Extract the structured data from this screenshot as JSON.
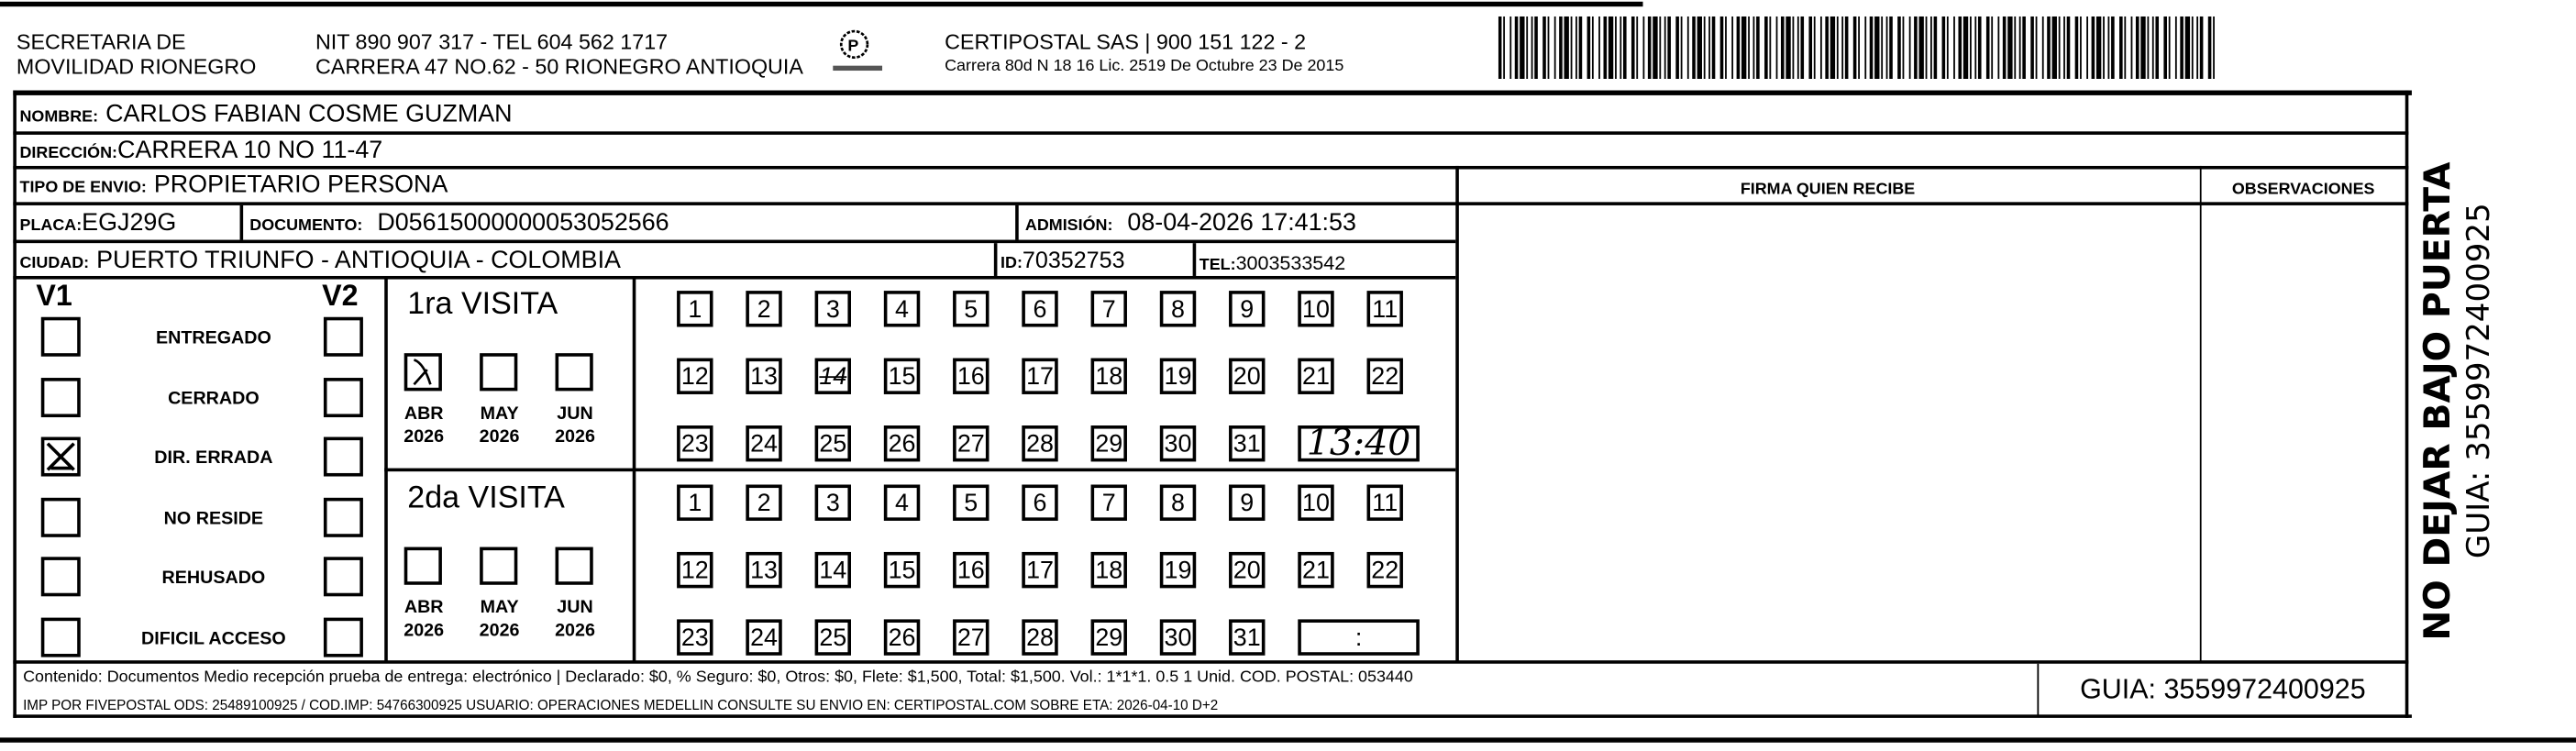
{
  "header": {
    "org_line1": "SECRETARIA  DE",
    "org_line2": "MOVILIDAD RIONEGRO",
    "nit_line": "NIT 890 907 317 - TEL 604 562 1717",
    "address_line": "CARRERA 47 NO.62 - 50 RIONEGRO ANTIOQUIA",
    "courier_line1": "CERTIPOSTAL SAS | 900 151 122 - 2",
    "courier_line2": "Carrera 80d N 18 16  Lic. 2519 De Octubre 23 De 2015",
    "logo_icon": "certipostal-logo-icon",
    "barcode_icon": "barcode-icon"
  },
  "recipient": {
    "nombre_label": "NOMBRE:",
    "nombre": "CARLOS FABIAN COSME GUZMAN",
    "direccion_label": "DIRECCIÓN:",
    "direccion": "CARRERA 10 NO 11-47",
    "tipo_label": "TIPO DE ENVIO:",
    "tipo": "PROPIETARIO PERSONA",
    "placa_label": "PLACA:",
    "placa": "EGJ29G",
    "documento_label": "DOCUMENTO:",
    "documento": "D05615000000053052566",
    "admision_label": "ADMISIÓN:",
    "admision": "08-04-2026 17:41:53",
    "ciudad_label": "CIUDAD:",
    "ciudad": "PUERTO TRIUNFO - ANTIOQUIA - COLOMBIA",
    "id_label": "ID:",
    "id": "70352753",
    "tel_label": "TEL:",
    "tel": "3003533542"
  },
  "columns": {
    "firma": "FIRMA QUIEN RECIBE",
    "observaciones": "OBSERVACIONES"
  },
  "status": {
    "v1_label": "V1",
    "v2_label": "V2",
    "options": [
      {
        "label": "ENTREGADO",
        "v1": false,
        "v2": false
      },
      {
        "label": "CERRADO",
        "v1": false,
        "v2": false
      },
      {
        "label": "DIR. ERRADA",
        "v1": true,
        "v2": false
      },
      {
        "label": "NO RESIDE",
        "v1": false,
        "v2": false
      },
      {
        "label": "REHUSADO",
        "v1": false,
        "v2": false
      },
      {
        "label": "DIFICIL ACCESO",
        "v1": false,
        "v2": false
      }
    ]
  },
  "visits": [
    {
      "title": "1ra VISITA",
      "months": [
        {
          "m": "ABR",
          "y": "2026",
          "checked": true
        },
        {
          "m": "MAY",
          "y": "2026",
          "checked": false
        },
        {
          "m": "JUN",
          "y": "2026",
          "checked": false
        }
      ],
      "marked_day": 14,
      "time": "13:40"
    },
    {
      "title": "2da VISITA",
      "months": [
        {
          "m": "ABR",
          "y": "2026",
          "checked": false
        },
        {
          "m": "MAY",
          "y": "2026",
          "checked": false
        },
        {
          "m": "JUN",
          "y": "2026",
          "checked": false
        }
      ],
      "marked_day": null,
      "time": ":"
    }
  ],
  "days": [
    1,
    2,
    3,
    4,
    5,
    6,
    7,
    8,
    9,
    10,
    11,
    12,
    13,
    14,
    15,
    16,
    17,
    18,
    19,
    20,
    21,
    22,
    23,
    24,
    25,
    26,
    27,
    28,
    29,
    30,
    31
  ],
  "footer": {
    "line1": "Contenido: Documentos Medio recepción prueba de entrega: electrónico | Declarado: $0, % Seguro: $0, Otros: $0, Flete: $1,500, Total: $1,500. Vol.: 1*1*1. 0.5  1 Unid. COD. POSTAL: 053440",
    "line2": "IMP POR FIVEPOSTAL ODS: 25489100925 / COD.IMP: 54766300925 USUARIO: OPERACIONES MEDELLIN CONSULTE SU ENVIO EN: CERTIPOSTAL.COM SOBRE ETA: 2026-04-10 D+2",
    "guia": "GUIA: 3559972400925"
  },
  "side": {
    "warning": "NO DEJAR BAJO PUERTA",
    "guia": "GUIA: 3559972400925"
  }
}
